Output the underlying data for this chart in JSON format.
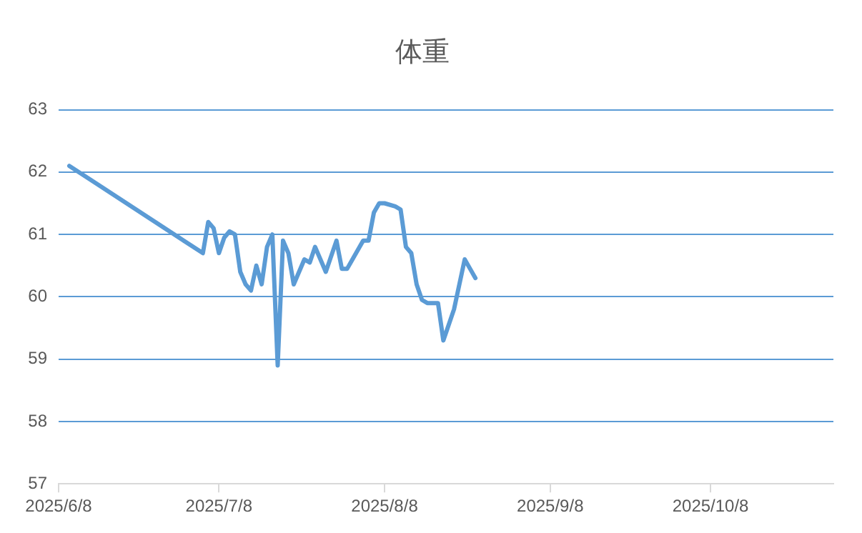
{
  "chart_data": {
    "type": "line",
    "title": "体重",
    "x": [
      "2025-06-10",
      "2025-07-05",
      "2025-07-06",
      "2025-07-07",
      "2025-07-08",
      "2025-07-09",
      "2025-07-10",
      "2025-07-11",
      "2025-07-12",
      "2025-07-13",
      "2025-07-14",
      "2025-07-15",
      "2025-07-16",
      "2025-07-17",
      "2025-07-18",
      "2025-07-19",
      "2025-07-20",
      "2025-07-21",
      "2025-07-22",
      "2025-07-24",
      "2025-07-25",
      "2025-07-26",
      "2025-07-28",
      "2025-07-30",
      "2025-07-31",
      "2025-08-01",
      "2025-08-02",
      "2025-08-04",
      "2025-08-05",
      "2025-08-06",
      "2025-08-07",
      "2025-08-08",
      "2025-08-10",
      "2025-08-11",
      "2025-08-12",
      "2025-08-13",
      "2025-08-14",
      "2025-08-15",
      "2025-08-16",
      "2025-08-18",
      "2025-08-19",
      "2025-08-20",
      "2025-08-21",
      "2025-08-23",
      "2025-08-24",
      "2025-08-25"
    ],
    "series": [
      {
        "color": "#5b9bd5",
        "values": [
          62.1,
          60.7,
          61.2,
          61.1,
          60.7,
          60.95,
          61.05,
          61.0,
          60.4,
          60.2,
          60.1,
          60.5,
          60.2,
          60.8,
          61.0,
          58.9,
          60.9,
          60.7,
          60.2,
          60.6,
          60.55,
          60.8,
          60.4,
          60.9,
          60.45,
          60.45,
          60.6,
          60.9,
          60.9,
          61.35,
          61.5,
          61.5,
          61.45,
          61.4,
          60.8,
          60.7,
          60.2,
          59.95,
          59.9,
          59.9,
          59.3,
          59.55,
          59.8,
          60.6,
          60.45,
          60.3
        ]
      }
    ],
    "xlim": [
      "2025-06-08",
      "2025-10-31"
    ],
    "xticks": [
      {
        "value": "2025-06-08",
        "label": "2025/6/8"
      },
      {
        "value": "2025-07-08",
        "label": "2025/7/8"
      },
      {
        "value": "2025-08-08",
        "label": "2025/8/8"
      },
      {
        "value": "2025-09-08",
        "label": "2025/9/8"
      },
      {
        "value": "2025-10-08",
        "label": "2025/10/8"
      }
    ],
    "ylim": [
      57,
      63
    ],
    "yticks": [
      57,
      58,
      59,
      60,
      61,
      62,
      63
    ],
    "grid": "y",
    "legend": false,
    "marker": "none",
    "line_style": "solid"
  }
}
